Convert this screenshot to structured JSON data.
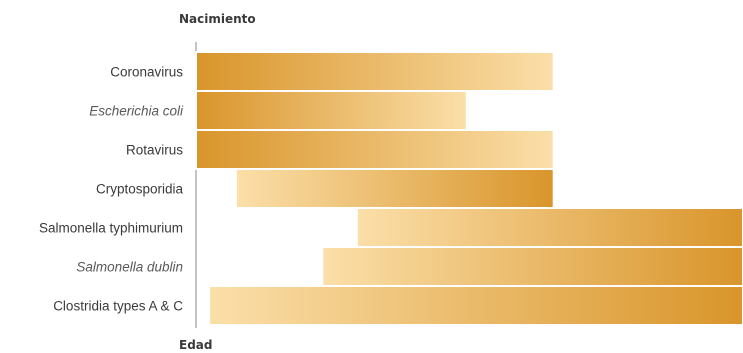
{
  "chart_data": {
    "type": "bar",
    "orientation": "horizontal-range",
    "title": "",
    "top_label": "Nacimiento",
    "bottom_label": "Edad",
    "categories": [
      "Coronavirus",
      "Escherichia coli",
      "Rotavirus",
      "Cryptosporidia",
      "Salmonella typhimurium",
      "Salmonella dublin",
      "Clostridia types A & C"
    ],
    "italic_categories": [
      "Escherichia coli",
      "Salmonella dublin"
    ],
    "ranges": [
      {
        "start": 0.0,
        "end": 0.654,
        "fade": "right"
      },
      {
        "start": 0.0,
        "end": 0.495,
        "fade": "right"
      },
      {
        "start": 0.0,
        "end": 0.654,
        "fade": "right"
      },
      {
        "start": 0.073,
        "end": 0.654,
        "fade": "left"
      },
      {
        "start": 0.294,
        "end": 1.0,
        "fade": "left"
      },
      {
        "start": 0.231,
        "end": 1.0,
        "fade": "left"
      },
      {
        "start": 0.024,
        "end": 1.0,
        "fade": "left"
      }
    ],
    "xlim": [
      0,
      1
    ],
    "colors": {
      "strong": "#d9952b",
      "light": "#fbdfa9",
      "axis": "#8a8a8a",
      "text": "#3a3a3a"
    },
    "grid": false,
    "legend": "none"
  }
}
